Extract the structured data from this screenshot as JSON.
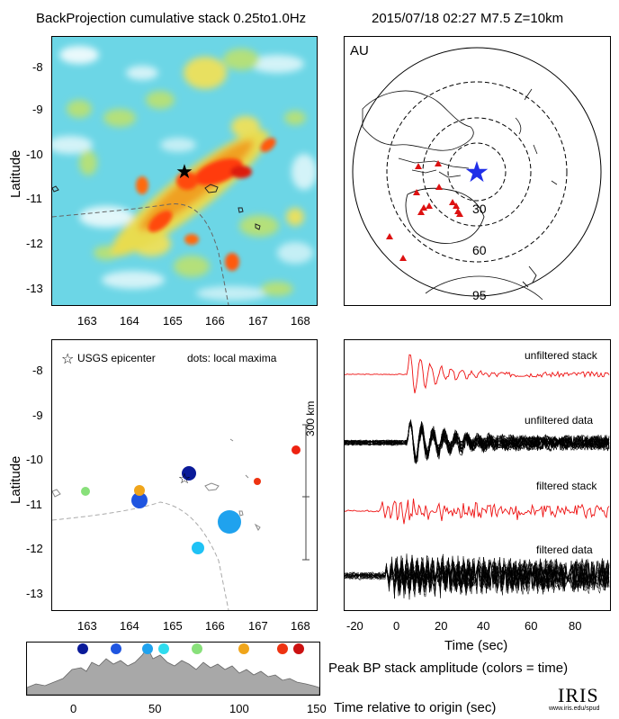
{
  "header": {
    "title": "BackProjection cumulative stack 0.25to1.0Hz",
    "event": "2015/07/18 02:27  M7.5  Z=10km"
  },
  "bp_map": {
    "ylabel": "Latitude",
    "lat_ticks": [
      "-8",
      "-9",
      "-10",
      "-11",
      "-12",
      "-13"
    ],
    "lon_ticks": [
      "163",
      "164",
      "165",
      "166",
      "167",
      "168"
    ]
  },
  "globe": {
    "label": "AU",
    "ring_labels": [
      "30",
      "60",
      "95"
    ],
    "star_color": "#1f2ee8",
    "station_color": "#dd1111"
  },
  "maxima_map": {
    "ylabel": "Latitude",
    "legend_star": "USGS epicenter",
    "legend_dots": "dots: local maxima",
    "scale_label": "300 km",
    "lat_ticks": [
      "-8",
      "-9",
      "-10",
      "-11",
      "-12",
      "-13"
    ],
    "lon_ticks": [
      "163",
      "164",
      "165",
      "166",
      "167",
      "168"
    ]
  },
  "traces": {
    "unfiltered_stack": "unfiltered stack",
    "unfiltered_data": "unfiltered data",
    "filtered_stack": "filtered stack",
    "filtered_data": "filtered data",
    "x_ticks": [
      "-20",
      "0",
      "20",
      "40",
      "60",
      "80"
    ],
    "xlabel": "Time (sec)",
    "stack_color": "#ee1111"
  },
  "amplitude": {
    "label": "Peak BP stack amplitude (colors = time)",
    "xlabel": "Time relative to origin (sec)",
    "x_ticks": [
      "0",
      "50",
      "100",
      "150"
    ],
    "dot_colors": [
      "#0a1a99",
      "#1f55e0",
      "#1fa2ee",
      "#2fdcee",
      "#88e07a",
      "#f0a51a",
      "#ee3311",
      "#cc1111"
    ]
  },
  "logo": {
    "name": "IRIS",
    "url": "www.iris.edu/spud"
  }
}
